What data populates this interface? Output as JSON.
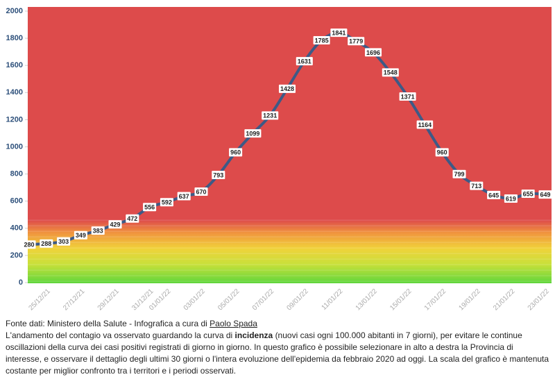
{
  "chart_data": {
    "type": "line",
    "categories": [
      null,
      "25/12/21",
      null,
      "27/12/21",
      null,
      "29/12/21",
      null,
      "31/12/21",
      "01/01/22",
      null,
      "03/01/22",
      null,
      "05/01/22",
      null,
      "07/01/22",
      null,
      "09/01/22",
      null,
      "11/01/22",
      null,
      "13/01/22",
      null,
      "15/01/22",
      null,
      "17/01/22",
      null,
      "19/01/22",
      null,
      "21/01/22",
      null,
      "23/01/22"
    ],
    "series": [
      {
        "name": "incidenza",
        "color": "#3d5a86",
        "values": [
          280,
          288,
          303,
          349,
          383,
          429,
          472,
          556,
          592,
          637,
          670,
          793,
          960,
          1099,
          1231,
          1428,
          1631,
          1785,
          1841,
          1779,
          1696,
          1548,
          1371,
          1164,
          960,
          799,
          713,
          645,
          619,
          655,
          649
        ]
      }
    ],
    "ylim": [
      0,
      2000
    ],
    "yticks": [
      0,
      200,
      400,
      600,
      800,
      1000,
      1200,
      1400,
      1600,
      1800,
      2000
    ],
    "grid": false
  },
  "footer": {
    "source": "Fonte dati: Ministero della Salute - Infografica a cura di",
    "author": "Paolo Spada",
    "text_before": "L'andamento del contagio va osservato guardando la curva di",
    "bold": "incidenza",
    "text_after": "(nuovi casi ogni 100.000 abitanti in 7 giorni), per evitare le continue oscillazioni della curva dei casi positivi registrati di giorno in giorno. In questo grafico è possibile selezionare in alto a destra la Provincia di interesse, e osservare il dettaglio degli ultimi 30 giorni o l'intera evoluzione dell'epidemia da febbraio 2020 ad oggi. La scala del grafico è mantenuta costante per miglior confronto tra i territori e i periodi osservati."
  }
}
